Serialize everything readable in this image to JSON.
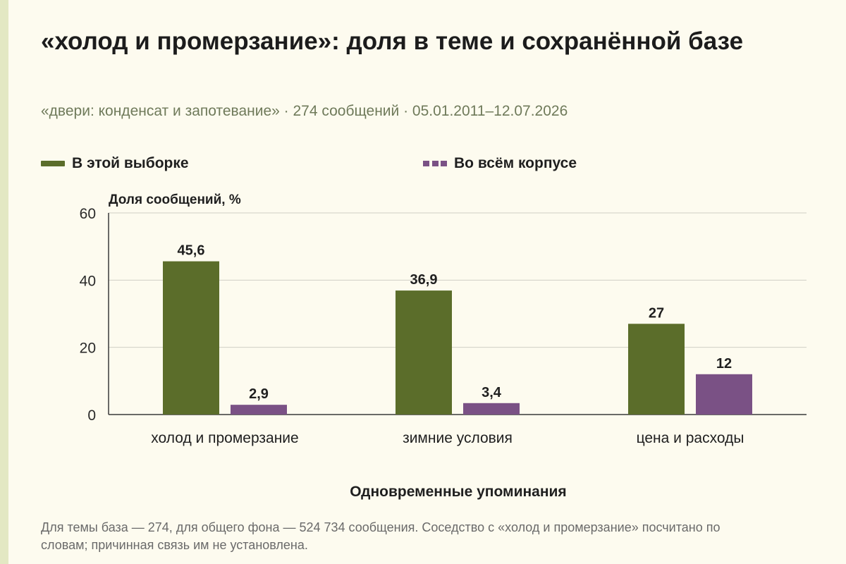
{
  "chart_data": {
    "type": "bar",
    "title": "«холод и промерзание»: доля в теме и сохранённой базе",
    "subtitle": "«двери: конденсат и запотевание» · 274 сообщений · 05.01.2011–12.07.2026",
    "ylabel": "Доля сообщений, %",
    "xlabel": "Одновременные упоминания",
    "ylim": [
      0,
      60
    ],
    "yticks": [
      0,
      20,
      40,
      60
    ],
    "grid": true,
    "legend_position": "top",
    "categories": [
      "холод и промерзание",
      "зимние условия",
      "цена и расходы"
    ],
    "series": [
      {
        "name": "В этой выборке",
        "values": [
          45.6,
          36.9,
          27
        ],
        "labels": [
          "45,6",
          "36,9",
          "27"
        ],
        "color": "#5b6d2a"
      },
      {
        "name": "Во всём корпусе",
        "values": [
          2.9,
          3.4,
          12
        ],
        "labels": [
          "2,9",
          "3,4",
          "12"
        ],
        "color": "#7a5185"
      }
    ],
    "footnote": "Для темы база — 274, для общего фона — 524 734 сообщения. Соседство с «холод и промерзание» посчитано по словам; причинная связь им не установлена."
  }
}
